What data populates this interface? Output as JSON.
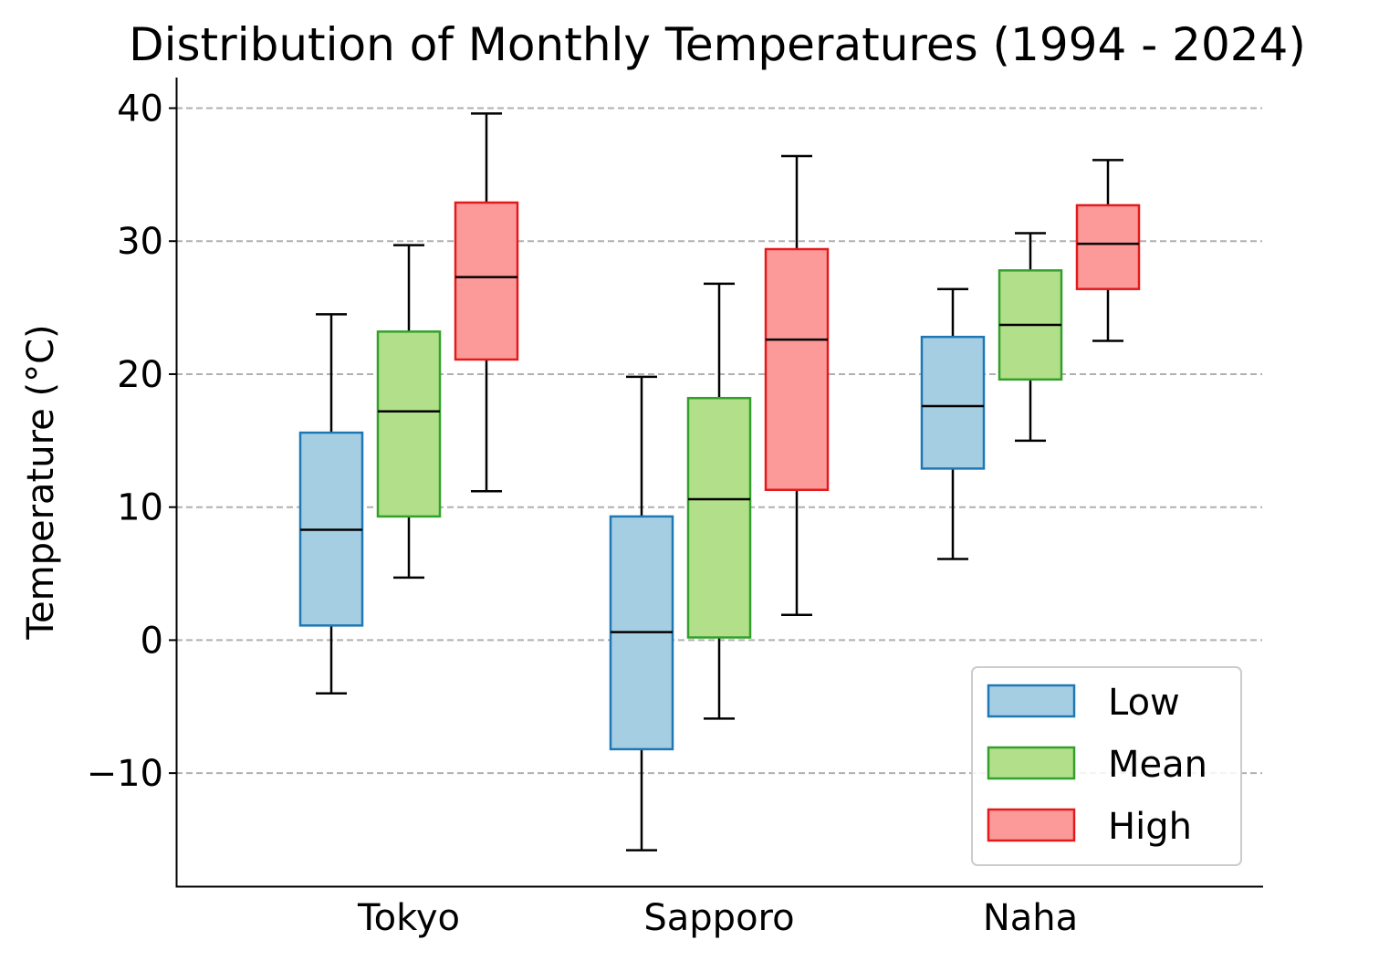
{
  "chart_data": {
    "type": "box",
    "title": "Distribution of Monthly Temperatures (1994 - 2024)",
    "xlabel": "",
    "ylabel": "Temperature (°C)",
    "categories": [
      "Tokyo",
      "Sapporo",
      "Naha"
    ],
    "ylim": [
      -18.5,
      42.3
    ],
    "yticks": [
      -10,
      0,
      10,
      20,
      30,
      40
    ],
    "ytick_labels": [
      "−10",
      "0",
      "10",
      "20",
      "30",
      "40"
    ],
    "grid": "y-dashed",
    "legend_position": "lower-right",
    "series": [
      {
        "name": "Low",
        "fill": "#a6cee3",
        "edge": "#1f78b4",
        "boxes": [
          {
            "whislo": -4.0,
            "q1": 1.1,
            "med": 8.3,
            "q3": 15.6,
            "whishi": 24.5
          },
          {
            "whislo": -15.8,
            "q1": -8.2,
            "med": 0.6,
            "q3": 9.3,
            "whishi": 19.8
          },
          {
            "whislo": 6.1,
            "q1": 12.9,
            "med": 17.6,
            "q3": 22.8,
            "whishi": 26.4
          }
        ]
      },
      {
        "name": "Mean",
        "fill": "#b2df8a",
        "edge": "#33a02c",
        "boxes": [
          {
            "whislo": 4.7,
            "q1": 9.3,
            "med": 17.2,
            "q3": 23.2,
            "whishi": 29.7
          },
          {
            "whislo": -5.9,
            "q1": 0.2,
            "med": 10.6,
            "q3": 18.2,
            "whishi": 26.8
          },
          {
            "whislo": 15.0,
            "q1": 19.6,
            "med": 23.7,
            "q3": 27.8,
            "whishi": 30.6
          }
        ]
      },
      {
        "name": "High",
        "fill": "#fb9a99",
        "edge": "#e31a1c",
        "boxes": [
          {
            "whislo": 11.2,
            "q1": 21.1,
            "med": 27.3,
            "q3": 32.9,
            "whishi": 39.6
          },
          {
            "whislo": 1.9,
            "q1": 11.3,
            "med": 22.6,
            "q3": 29.4,
            "whishi": 36.4
          },
          {
            "whislo": 22.5,
            "q1": 26.4,
            "med": 29.8,
            "q3": 32.7,
            "whishi": 36.1
          }
        ]
      }
    ]
  }
}
